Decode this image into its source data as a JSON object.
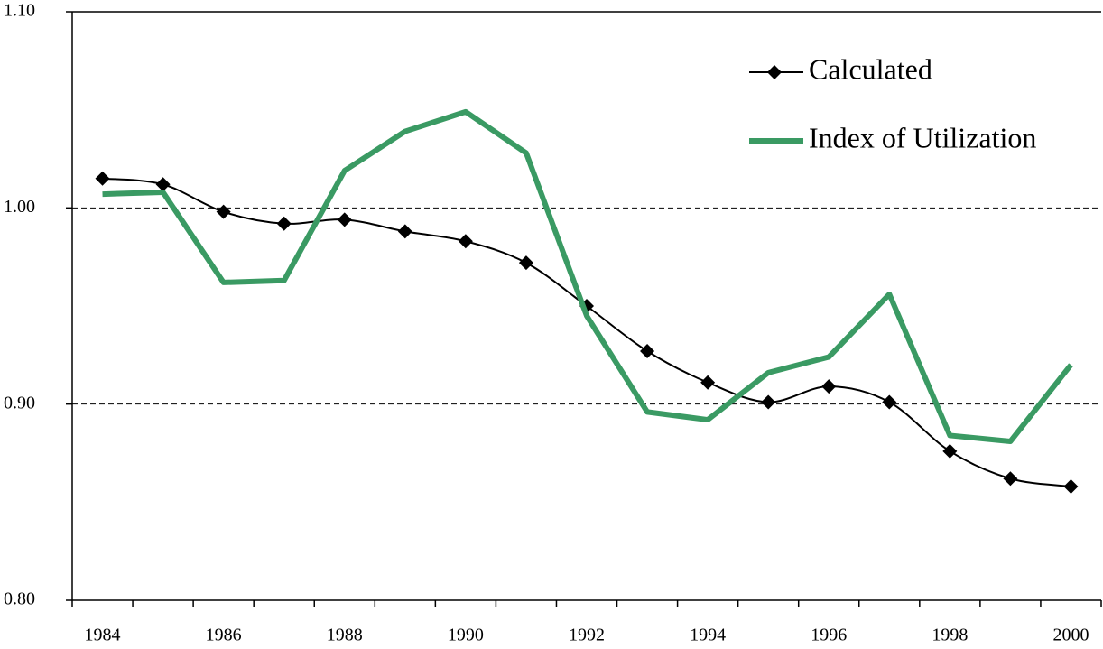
{
  "chart_data": {
    "type": "line",
    "categories": [
      "1984",
      null,
      "1986",
      null,
      "1988",
      null,
      "1990",
      null,
      "1992",
      null,
      "1994",
      null,
      "1996",
      null,
      "1998",
      null,
      "2000"
    ],
    "series": [
      {
        "name": "Calculated",
        "color": "#000000",
        "marker": "diamond",
        "values": [
          1.015,
          1.012,
          0.998,
          0.992,
          0.994,
          0.988,
          0.983,
          0.972,
          0.95,
          0.927,
          0.911,
          0.901,
          0.909,
          0.901,
          0.876,
          0.862,
          0.858
        ]
      },
      {
        "name": "Index of Utilization",
        "color": "#3a9a63",
        "values": [
          1.007,
          1.008,
          0.962,
          0.963,
          1.019,
          1.039,
          1.049,
          1.028,
          0.945,
          0.896,
          0.892,
          0.916,
          0.924,
          0.956,
          0.884,
          0.881,
          0.92
        ]
      }
    ],
    "ylim": [
      0.8,
      1.1
    ],
    "yticks": [
      {
        "value": 0.8,
        "label": "0.80"
      },
      {
        "value": 0.9,
        "label": "0.90"
      },
      {
        "value": 1.0,
        "label": "1.00"
      },
      {
        "value": 1.1,
        "label": "1.10"
      }
    ],
    "grid": true,
    "legend": "top-right"
  }
}
